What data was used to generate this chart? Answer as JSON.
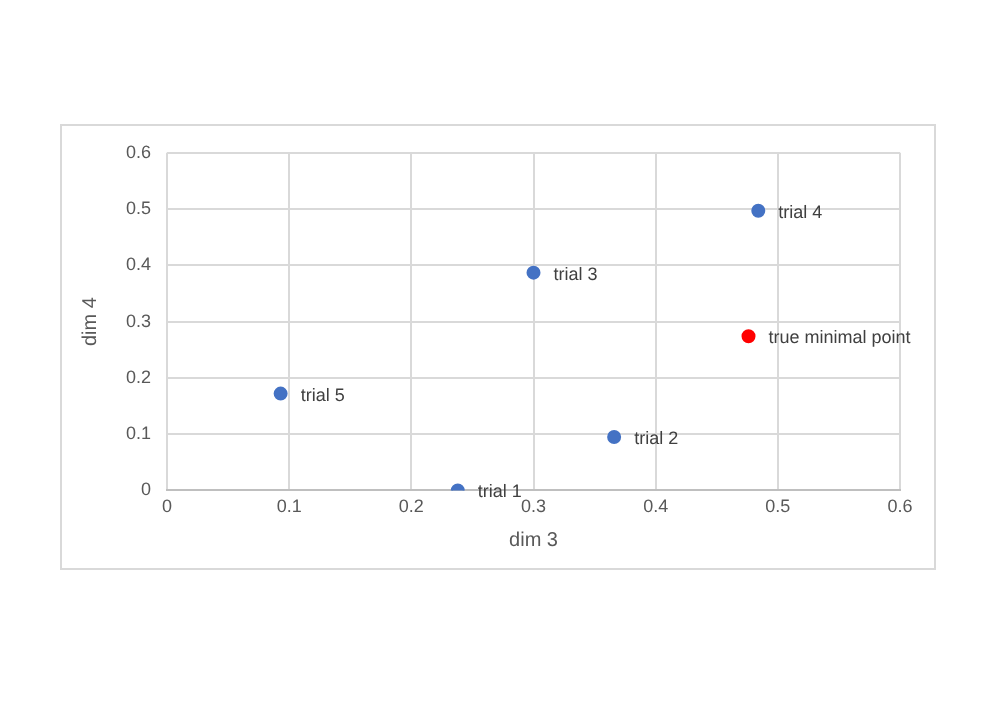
{
  "chart_data": {
    "type": "scatter",
    "xlabel": "dim 3",
    "ylabel": "dim 4",
    "xlim": [
      0,
      0.6
    ],
    "ylim": [
      0,
      0.6
    ],
    "xticks": [
      0,
      0.1,
      0.2,
      0.3,
      0.4,
      0.5,
      0.6
    ],
    "yticks": [
      0,
      0.1,
      0.2,
      0.3,
      0.4,
      0.5,
      0.6
    ],
    "grid": true,
    "legend": false,
    "marker": "circle",
    "series": [
      {
        "name": "trial 1",
        "color": "#4472c4",
        "x": [
          0.238
        ],
        "values": [
          0
        ]
      },
      {
        "name": "trial 2",
        "color": "#4472c4",
        "x": [
          0.366
        ],
        "values": [
          0.095
        ]
      },
      {
        "name": "trial 3",
        "color": "#4472c4",
        "x": [
          0.3
        ],
        "values": [
          0.387
        ]
      },
      {
        "name": "trial 4",
        "color": "#4472c4",
        "x": [
          0.484
        ],
        "values": [
          0.497
        ]
      },
      {
        "name": "trial 5",
        "color": "#4472c4",
        "x": [
          0.093
        ],
        "values": [
          0.172
        ]
      },
      {
        "name": "true minimal point",
        "color": "#ff0000",
        "x": [
          0.476
        ],
        "values": [
          0.274
        ]
      }
    ]
  }
}
